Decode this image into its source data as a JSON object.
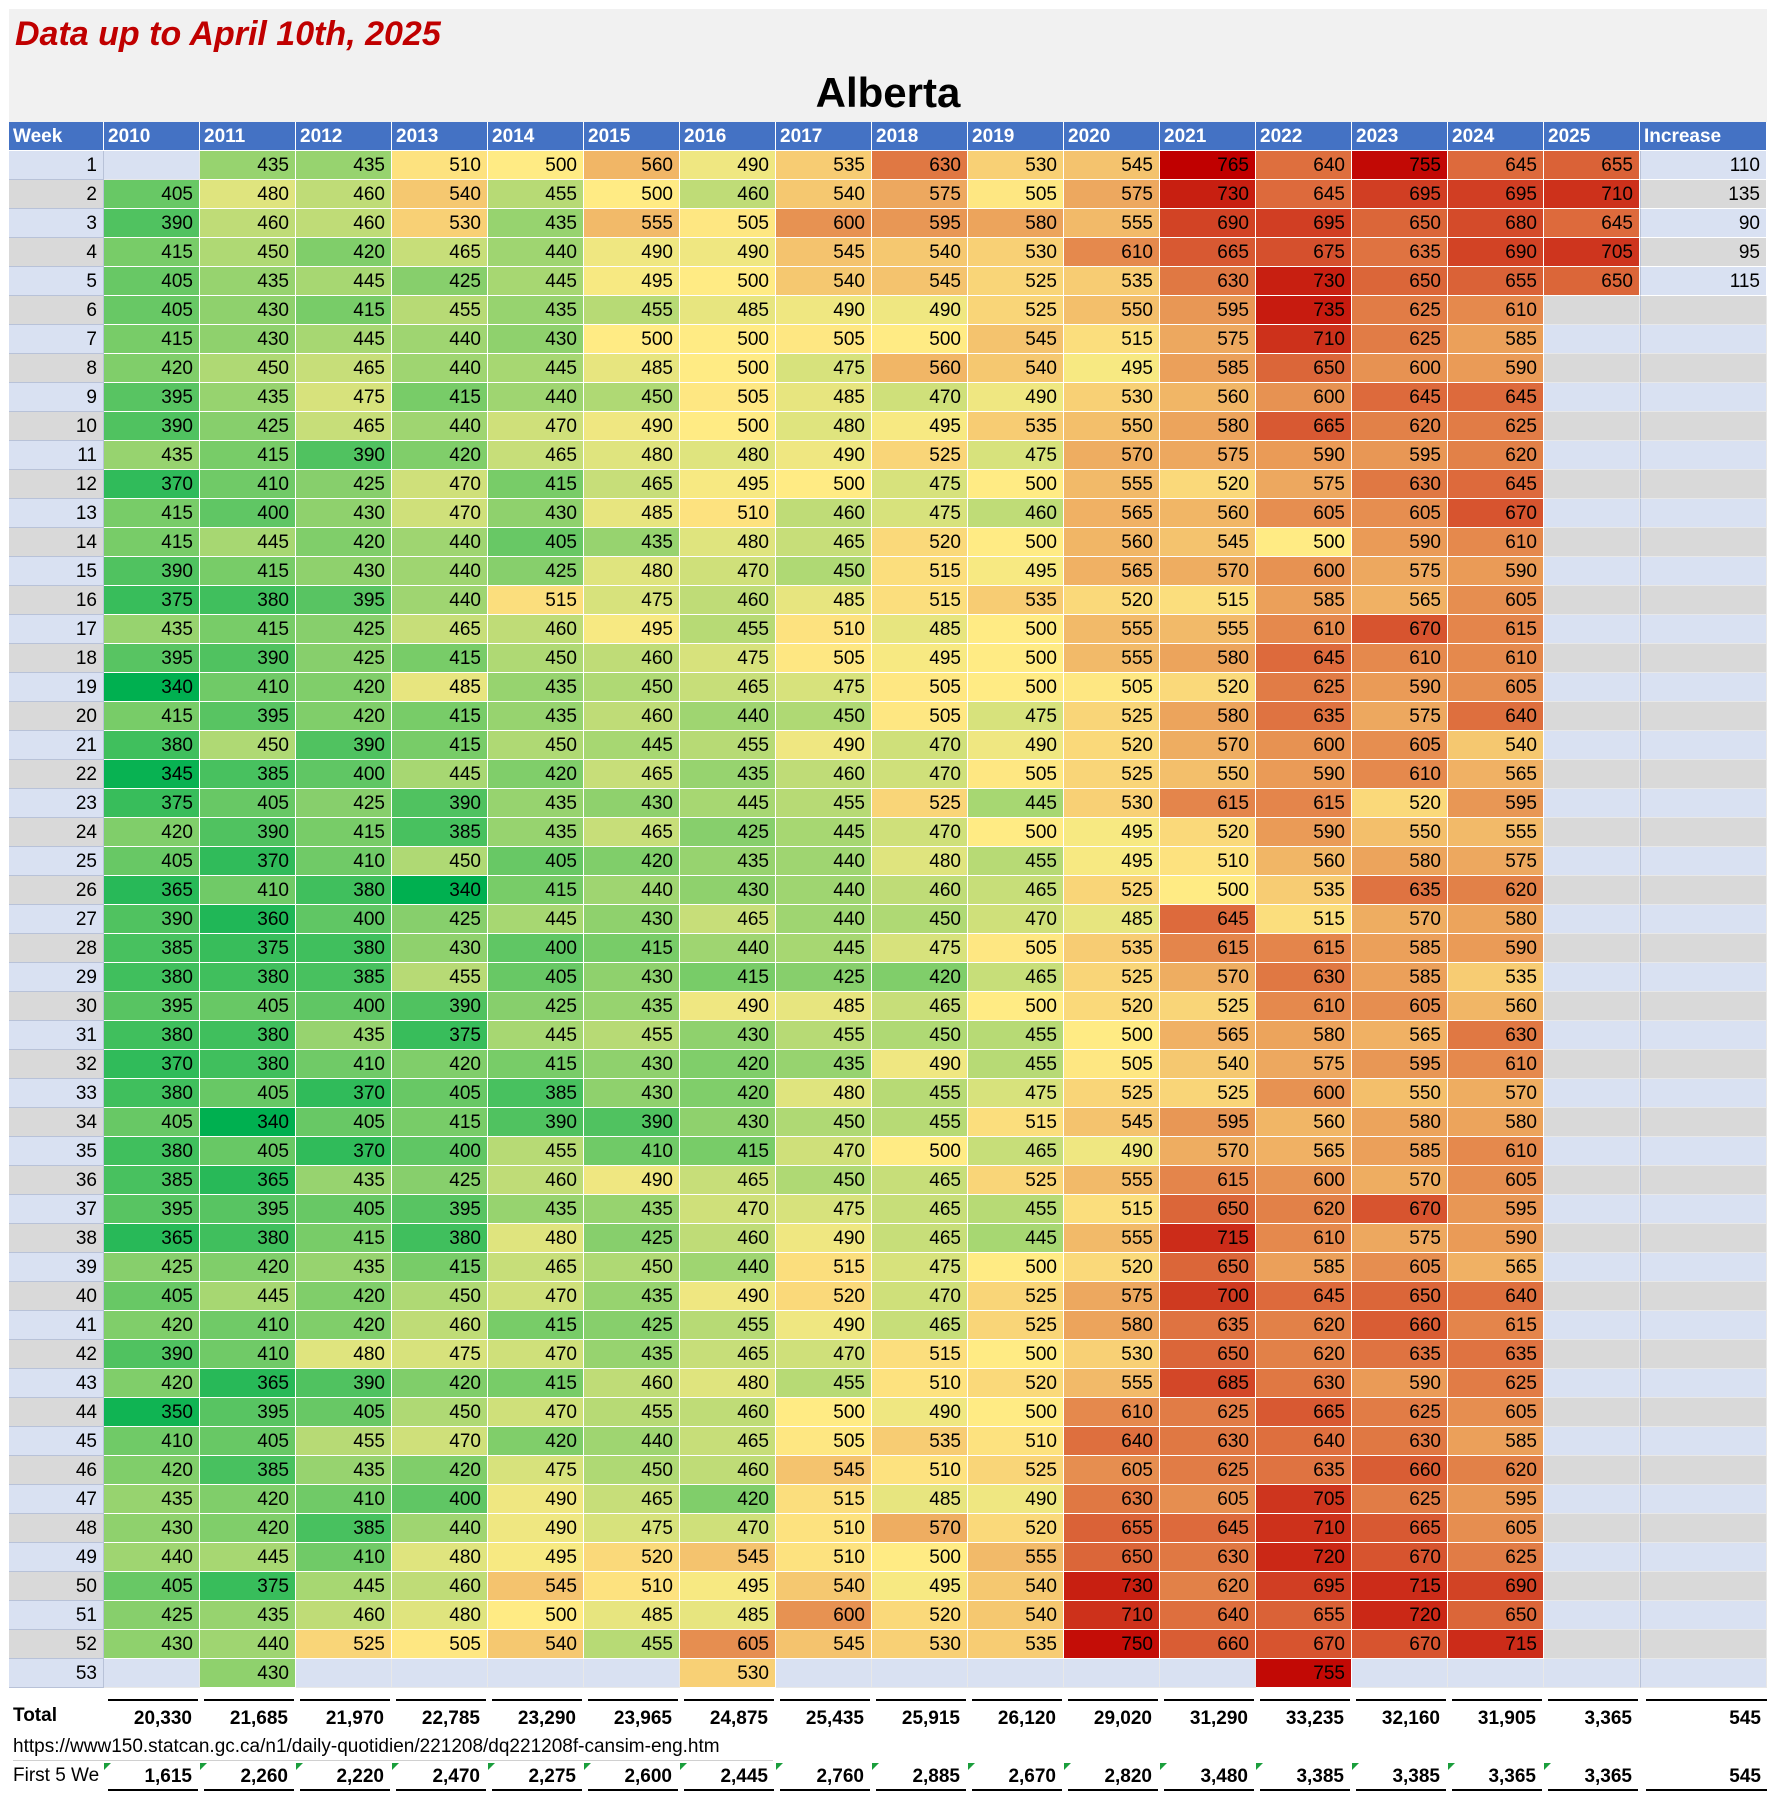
{
  "note": "Data up to April 10th, 2025",
  "chart_data": {
    "type": "heatmap",
    "title": "Alberta",
    "row_header": "Week",
    "columns": [
      "2010",
      "2011",
      "2012",
      "2013",
      "2014",
      "2015",
      "2016",
      "2017",
      "2018",
      "2019",
      "2020",
      "2021",
      "2022",
      "2023",
      "2024",
      "2025"
    ],
    "extra_column": "Increase",
    "weeks": [
      1,
      2,
      3,
      4,
      5,
      6,
      7,
      8,
      9,
      10,
      11,
      12,
      13,
      14,
      15,
      16,
      17,
      18,
      19,
      20,
      21,
      22,
      23,
      24,
      25,
      26,
      27,
      28,
      29,
      30,
      31,
      32,
      33,
      34,
      35,
      36,
      37,
      38,
      39,
      40,
      41,
      42,
      43,
      44,
      45,
      46,
      47,
      48,
      49,
      50,
      51,
      52,
      53
    ],
    "values": [
      [
        null,
        435,
        435,
        510,
        500,
        560,
        490,
        535,
        630,
        530,
        545,
        765,
        640,
        755,
        645,
        655
      ],
      [
        405,
        480,
        460,
        540,
        455,
        500,
        460,
        540,
        575,
        505,
        575,
        730,
        645,
        695,
        695,
        710
      ],
      [
        390,
        460,
        460,
        530,
        435,
        555,
        505,
        600,
        595,
        580,
        555,
        690,
        695,
        650,
        680,
        645
      ],
      [
        415,
        450,
        420,
        465,
        440,
        490,
        490,
        545,
        540,
        530,
        610,
        665,
        675,
        635,
        690,
        705
      ],
      [
        405,
        435,
        445,
        425,
        445,
        495,
        500,
        540,
        545,
        525,
        535,
        630,
        730,
        650,
        655,
        650
      ],
      [
        405,
        430,
        415,
        455,
        435,
        455,
        485,
        490,
        490,
        525,
        550,
        595,
        735,
        625,
        610,
        null
      ],
      [
        415,
        430,
        445,
        440,
        430,
        500,
        500,
        505,
        500,
        545,
        515,
        575,
        710,
        625,
        585,
        null
      ],
      [
        420,
        450,
        465,
        440,
        445,
        485,
        500,
        475,
        560,
        540,
        495,
        585,
        650,
        600,
        590,
        null
      ],
      [
        395,
        435,
        475,
        415,
        440,
        450,
        505,
        485,
        470,
        490,
        530,
        560,
        600,
        645,
        645,
        null
      ],
      [
        390,
        425,
        465,
        440,
        470,
        490,
        500,
        480,
        495,
        535,
        550,
        580,
        665,
        620,
        625,
        null
      ],
      [
        435,
        415,
        390,
        420,
        465,
        480,
        480,
        490,
        525,
        475,
        570,
        575,
        590,
        595,
        620,
        null
      ],
      [
        370,
        410,
        425,
        470,
        415,
        465,
        495,
        500,
        475,
        500,
        555,
        520,
        575,
        630,
        645,
        null
      ],
      [
        415,
        400,
        430,
        470,
        430,
        485,
        510,
        460,
        475,
        460,
        565,
        560,
        605,
        605,
        670,
        null
      ],
      [
        415,
        445,
        420,
        440,
        405,
        435,
        480,
        465,
        520,
        500,
        560,
        545,
        500,
        590,
        610,
        null
      ],
      [
        390,
        415,
        430,
        440,
        425,
        480,
        470,
        450,
        515,
        495,
        565,
        570,
        600,
        575,
        590,
        null
      ],
      [
        375,
        380,
        395,
        440,
        515,
        475,
        460,
        485,
        515,
        535,
        520,
        515,
        585,
        565,
        605,
        null
      ],
      [
        435,
        415,
        425,
        465,
        460,
        495,
        455,
        510,
        485,
        500,
        555,
        555,
        610,
        670,
        615,
        null
      ],
      [
        395,
        390,
        425,
        415,
        450,
        460,
        475,
        505,
        495,
        500,
        555,
        580,
        645,
        610,
        610,
        null
      ],
      [
        340,
        410,
        420,
        485,
        435,
        450,
        465,
        475,
        505,
        500,
        505,
        520,
        625,
        590,
        605,
        null
      ],
      [
        415,
        395,
        420,
        415,
        435,
        460,
        440,
        450,
        505,
        475,
        525,
        580,
        635,
        575,
        640,
        null
      ],
      [
        380,
        450,
        390,
        415,
        450,
        445,
        455,
        490,
        470,
        490,
        520,
        570,
        600,
        605,
        540,
        null
      ],
      [
        345,
        385,
        400,
        445,
        420,
        465,
        435,
        460,
        470,
        505,
        525,
        550,
        590,
        610,
        565,
        null
      ],
      [
        375,
        405,
        425,
        390,
        435,
        430,
        445,
        455,
        525,
        445,
        530,
        615,
        615,
        520,
        595,
        null
      ],
      [
        420,
        390,
        415,
        385,
        435,
        465,
        425,
        445,
        470,
        500,
        495,
        520,
        590,
        550,
        555,
        null
      ],
      [
        405,
        370,
        410,
        450,
        405,
        420,
        435,
        440,
        480,
        455,
        495,
        510,
        560,
        580,
        575,
        null
      ],
      [
        365,
        410,
        380,
        340,
        415,
        440,
        430,
        440,
        460,
        465,
        525,
        500,
        535,
        635,
        620,
        null
      ],
      [
        390,
        360,
        400,
        425,
        445,
        430,
        465,
        440,
        450,
        470,
        485,
        645,
        515,
        570,
        580,
        null
      ],
      [
        385,
        375,
        380,
        430,
        400,
        415,
        440,
        445,
        475,
        505,
        535,
        615,
        615,
        585,
        590,
        null
      ],
      [
        380,
        380,
        385,
        455,
        405,
        430,
        415,
        425,
        420,
        465,
        525,
        570,
        630,
        585,
        535,
        null
      ],
      [
        395,
        405,
        400,
        390,
        425,
        435,
        490,
        485,
        465,
        500,
        520,
        525,
        610,
        605,
        560,
        null
      ],
      [
        380,
        380,
        435,
        375,
        445,
        455,
        430,
        455,
        450,
        455,
        500,
        565,
        580,
        565,
        630,
        null
      ],
      [
        370,
        380,
        410,
        420,
        415,
        430,
        420,
        435,
        490,
        455,
        505,
        540,
        575,
        595,
        610,
        null
      ],
      [
        380,
        405,
        370,
        405,
        385,
        430,
        420,
        480,
        455,
        475,
        525,
        525,
        600,
        550,
        570,
        null
      ],
      [
        405,
        340,
        405,
        415,
        390,
        390,
        430,
        450,
        455,
        515,
        545,
        595,
        560,
        580,
        580,
        null
      ],
      [
        380,
        405,
        370,
        400,
        455,
        410,
        415,
        470,
        500,
        465,
        490,
        570,
        565,
        585,
        610,
        null
      ],
      [
        385,
        365,
        435,
        425,
        460,
        490,
        465,
        450,
        465,
        525,
        555,
        615,
        600,
        570,
        605,
        null
      ],
      [
        395,
        395,
        405,
        395,
        435,
        435,
        470,
        475,
        465,
        455,
        515,
        650,
        620,
        670,
        595,
        null
      ],
      [
        365,
        380,
        415,
        380,
        480,
        425,
        460,
        490,
        465,
        445,
        555,
        715,
        610,
        575,
        590,
        null
      ],
      [
        425,
        420,
        435,
        415,
        465,
        450,
        440,
        515,
        475,
        500,
        520,
        650,
        585,
        605,
        565,
        null
      ],
      [
        405,
        445,
        420,
        450,
        470,
        435,
        490,
        520,
        470,
        525,
        575,
        700,
        645,
        650,
        640,
        null
      ],
      [
        420,
        410,
        420,
        460,
        415,
        425,
        455,
        490,
        465,
        525,
        580,
        635,
        620,
        660,
        615,
        null
      ],
      [
        390,
        410,
        480,
        475,
        470,
        435,
        465,
        470,
        515,
        500,
        530,
        650,
        620,
        635,
        635,
        null
      ],
      [
        420,
        365,
        390,
        420,
        415,
        460,
        480,
        455,
        510,
        520,
        555,
        685,
        630,
        590,
        625,
        null
      ],
      [
        350,
        395,
        405,
        450,
        470,
        455,
        460,
        500,
        490,
        500,
        610,
        625,
        665,
        625,
        605,
        null
      ],
      [
        410,
        405,
        455,
        470,
        420,
        440,
        465,
        505,
        535,
        510,
        640,
        630,
        640,
        630,
        585,
        null
      ],
      [
        420,
        385,
        435,
        420,
        475,
        450,
        460,
        545,
        510,
        525,
        605,
        625,
        635,
        660,
        620,
        null
      ],
      [
        435,
        420,
        410,
        400,
        490,
        465,
        420,
        515,
        485,
        490,
        630,
        605,
        705,
        625,
        595,
        null
      ],
      [
        430,
        420,
        385,
        440,
        490,
        475,
        470,
        510,
        570,
        520,
        655,
        645,
        710,
        665,
        605,
        null
      ],
      [
        440,
        445,
        410,
        480,
        495,
        520,
        545,
        510,
        500,
        555,
        650,
        630,
        720,
        670,
        625,
        null
      ],
      [
        405,
        375,
        445,
        460,
        545,
        510,
        495,
        540,
        495,
        540,
        730,
        620,
        695,
        715,
        690,
        null
      ],
      [
        425,
        435,
        460,
        480,
        500,
        485,
        485,
        600,
        520,
        540,
        710,
        640,
        655,
        720,
        650,
        null
      ],
      [
        430,
        440,
        525,
        505,
        540,
        455,
        605,
        545,
        530,
        535,
        750,
        660,
        670,
        670,
        715,
        null
      ],
      [
        null,
        430,
        null,
        null,
        null,
        null,
        530,
        null,
        null,
        null,
        null,
        null,
        755,
        null,
        null,
        null
      ]
    ],
    "increase": [
      110,
      135,
      90,
      95,
      115
    ],
    "color_scale": {
      "min": 340,
      "mid": 500,
      "max": 765,
      "low_color": "#00b050",
      "mid_color": "#ffeb84",
      "high_color": "#c00000"
    }
  },
  "footer": {
    "total_label": "Total",
    "totals": [
      "20,330",
      "21,685",
      "21,970",
      "22,785",
      "23,290",
      "23,965",
      "24,875",
      "25,435",
      "25,915",
      "26,120",
      "29,020",
      "31,290",
      "33,235",
      "32,160",
      "31,905",
      "3,365"
    ],
    "total_increase": "545",
    "source_url": "https://www150.statcan.gc.ca/n1/daily-quotidien/221208/dq221208f-cansim-eng.htm",
    "first5_label": "First 5 We",
    "first5": [
      "1,615",
      "2,260",
      "2,220",
      "2,470",
      "2,275",
      "2,600",
      "2,445",
      "2,760",
      "2,885",
      "2,670",
      "2,820",
      "3,480",
      "3,385",
      "3,385",
      "3,365",
      "3,365"
    ],
    "first5_increase": "545"
  }
}
